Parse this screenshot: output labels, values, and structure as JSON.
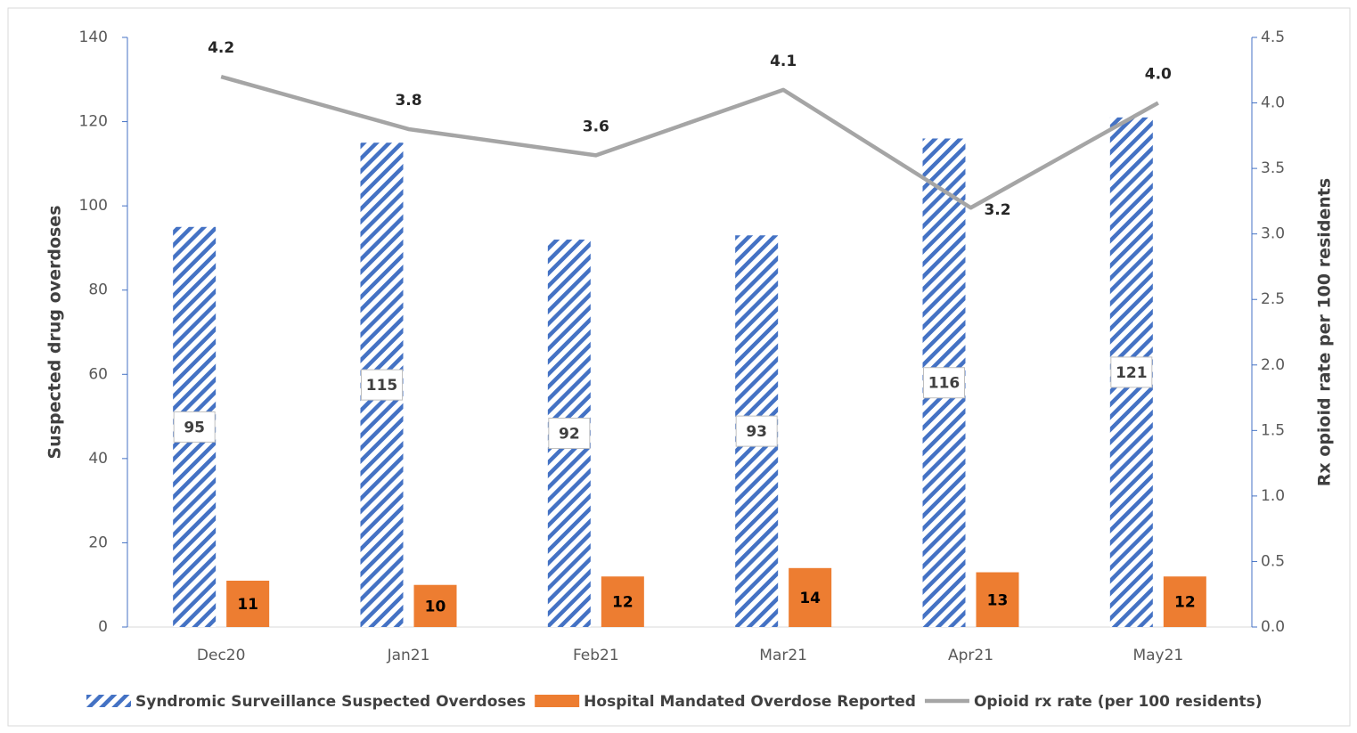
{
  "chart_data": {
    "type": "bar-line",
    "categories": [
      "Dec20",
      "Jan21",
      "Feb21",
      "Mar21",
      "Apr21",
      "May21"
    ],
    "y_label": "Suspected drug overdoses",
    "y2_label": "Rx opioid rate per 100 residents",
    "ylim": [
      0,
      140
    ],
    "yticks": [
      0,
      20,
      40,
      60,
      80,
      100,
      120,
      140
    ],
    "y2lim": [
      0,
      4.5
    ],
    "y2ticks": [
      {
        "value": 0,
        "label": "0.0"
      },
      0.5,
      {
        "value": 1,
        "label": "1.0"
      },
      1.5,
      {
        "value": 2,
        "label": "2.0"
      },
      2.5,
      {
        "value": 3,
        "label": "3.0"
      },
      3.5,
      {
        "value": 4,
        "label": "4.0"
      },
      4.5
    ],
    "legend": "bottom",
    "series": [
      {
        "name": "Syndromic Surveillance Suspected Overdoses",
        "type": "bar",
        "fill_style": "diagonal-hatch",
        "color": "#4472c4",
        "values": [
          95,
          115,
          92,
          93,
          116,
          121
        ]
      },
      {
        "name": "Hospital Mandated Overdose Reported",
        "type": "bar",
        "fill_style": "solid",
        "color": "#ed7d31",
        "values": [
          11,
          10,
          12,
          14,
          13,
          12
        ]
      },
      {
        "name": "Opioid rx rate (per 100 residents)",
        "type": "line",
        "axis": "y2",
        "color": "#a5a5a5",
        "values": [
          4.2,
          3.8,
          3.6,
          4.1,
          3.2,
          4.0
        ],
        "value_labels": [
          "4.2",
          "3.8",
          "3.6",
          "4.1",
          "3.2",
          "4.0"
        ]
      }
    ]
  }
}
